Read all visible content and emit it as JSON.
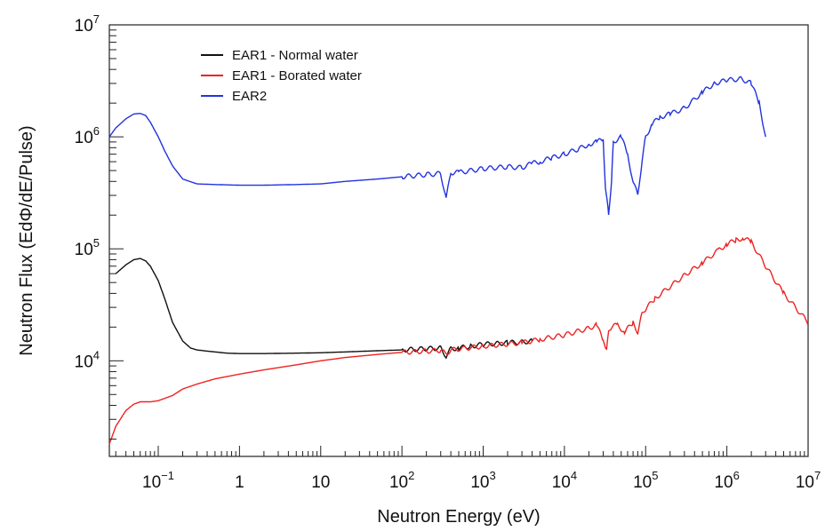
{
  "chart_data": {
    "type": "line",
    "title": "",
    "xlabel": "Neutron Energy (eV)",
    "ylabel": "Neutron Flux (EdΦ/dE/Pulse)",
    "x_scale": "log",
    "y_scale": "log",
    "xlim": [
      0.025,
      10000000
    ],
    "ylim": [
      1400,
      10000000
    ],
    "grid": false,
    "legend_position": "top-left",
    "x_ticks": [
      {
        "value": 0.1,
        "base": "10",
        "exp": "−1"
      },
      {
        "value": 1,
        "base": "1",
        "exp": ""
      },
      {
        "value": 10,
        "base": "10",
        "exp": ""
      },
      {
        "value": 100,
        "base": "10",
        "exp": "2"
      },
      {
        "value": 1000,
        "base": "10",
        "exp": "3"
      },
      {
        "value": 10000,
        "base": "10",
        "exp": "4"
      },
      {
        "value": 100000,
        "base": "10",
        "exp": "5"
      },
      {
        "value": 1000000,
        "base": "10",
        "exp": "6"
      },
      {
        "value": 10000000,
        "base": "10",
        "exp": "7"
      }
    ],
    "y_ticks": [
      {
        "value": 10000,
        "base": "10",
        "exp": "4"
      },
      {
        "value": 100000,
        "base": "10",
        "exp": "5"
      },
      {
        "value": 1000000,
        "base": "10",
        "exp": "6"
      },
      {
        "value": 10000000,
        "base": "10",
        "exp": "7"
      }
    ],
    "series": [
      {
        "name": "EAR1 - Normal water",
        "color": "#111111",
        "x": [
          0.03,
          0.04,
          0.05,
          0.06,
          0.07,
          0.08,
          0.1,
          0.12,
          0.15,
          0.2,
          0.25,
          0.3,
          0.4,
          0.5,
          0.7,
          1,
          2,
          5,
          10,
          20,
          50,
          100,
          200,
          300,
          350,
          400,
          500,
          700,
          1000,
          1500,
          2000,
          3000,
          4000
        ],
        "y": [
          60000,
          72000,
          80000,
          82000,
          78000,
          70000,
          52000,
          36000,
          22000,
          15000,
          13000,
          12500,
          12200,
          12000,
          11700,
          11600,
          11600,
          11700,
          11800,
          12000,
          12300,
          12500,
          12800,
          13000,
          11000,
          12800,
          13000,
          13500,
          14000,
          14300,
          14500,
          14700,
          15000
        ]
      },
      {
        "name": "EAR1 - Borated water",
        "color": "#ee2222",
        "x": [
          0.025,
          0.03,
          0.04,
          0.05,
          0.06,
          0.07,
          0.08,
          0.1,
          0.15,
          0.2,
          0.3,
          0.5,
          1,
          2,
          5,
          10,
          20,
          50,
          100,
          200,
          300,
          350,
          400,
          1000,
          3000,
          5000,
          10000,
          20000,
          25000,
          30000,
          33000,
          35000,
          38000,
          45000,
          55000,
          70000,
          80000,
          90000,
          100000,
          130000,
          200000,
          300000,
          500000,
          800000,
          1000000,
          1300000,
          1600000,
          2000000,
          3000000,
          5000000,
          10000000
        ],
        "y": [
          1800,
          2600,
          3600,
          4100,
          4300,
          4300,
          4300,
          4400,
          4900,
          5600,
          6200,
          6900,
          7600,
          8300,
          9200,
          10000,
          10700,
          11400,
          11900,
          12200,
          12400,
          11500,
          12500,
          13500,
          14500,
          15500,
          17000,
          19500,
          21000,
          15000,
          13000,
          18000,
          20000,
          21000,
          18000,
          22000,
          18000,
          26000,
          29000,
          36000,
          46000,
          58000,
          75000,
          98000,
          110000,
          120000,
          125000,
          115000,
          70000,
          40000,
          22000
        ]
      },
      {
        "name": "EAR2",
        "color": "#2233dd",
        "x": [
          0.025,
          0.03,
          0.04,
          0.05,
          0.06,
          0.07,
          0.08,
          0.1,
          0.12,
          0.15,
          0.2,
          0.3,
          0.5,
          1,
          2,
          5,
          10,
          20,
          50,
          100,
          200,
          300,
          350,
          400,
          500,
          1000,
          2000,
          3000,
          4000,
          5000,
          7000,
          10000,
          15000,
          20000,
          25000,
          30000,
          32000,
          35000,
          38000,
          40000,
          50000,
          60000,
          70000,
          80000,
          90000,
          100000,
          120000,
          150000,
          200000,
          300000,
          500000,
          700000,
          1000000,
          1500000,
          2000000,
          2500000,
          3000000
        ],
        "y": [
          1000000,
          1200000,
          1450000,
          1600000,
          1620000,
          1550000,
          1350000,
          1000000,
          750000,
          550000,
          420000,
          380000,
          375000,
          370000,
          370000,
          375000,
          380000,
          400000,
          420000,
          440000,
          460000,
          470000,
          280000,
          480000,
          480000,
          520000,
          540000,
          530000,
          580000,
          600000,
          650000,
          700000,
          780000,
          860000,
          900000,
          950000,
          350000,
          200000,
          400000,
          900000,
          1000000,
          700000,
          400000,
          300000,
          600000,
          1000000,
          1300000,
          1500000,
          1600000,
          1800000,
          2500000,
          3000000,
          3200000,
          3300000,
          3000000,
          2000000,
          1000000
        ]
      }
    ]
  }
}
